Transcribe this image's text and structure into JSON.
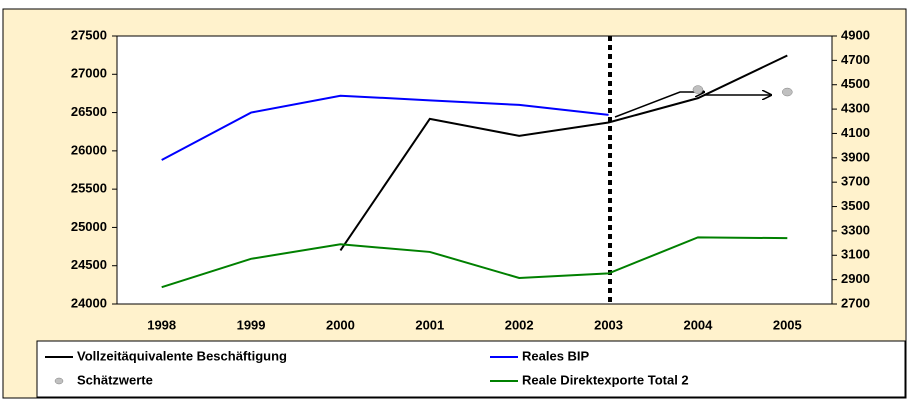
{
  "chart_data": {
    "type": "line",
    "categories": [
      "1998",
      "1999",
      "2000",
      "2001",
      "2002",
      "2003",
      "2004",
      "2005"
    ],
    "ylim": [
      24000,
      27500
    ],
    "yticks": [
      24000,
      24500,
      25000,
      25500,
      26000,
      26500,
      27000,
      27500
    ],
    "y2lim": [
      2700,
      4900
    ],
    "y2ticks": [
      2700,
      2900,
      3100,
      3300,
      3500,
      3700,
      3900,
      4100,
      4300,
      4500,
      4700,
      4900
    ],
    "grid": false,
    "series": [
      {
        "name": "Vollzeitäquivalente Beschäftigung",
        "color": "#000000",
        "axis": "y2",
        "values": [
          null,
          null,
          3140,
          4220,
          4080,
          4190,
          4390,
          4740
        ]
      },
      {
        "name": "Reales BIP",
        "color": "#0000ff",
        "values": [
          25880,
          26500,
          26720,
          26660,
          26600,
          26470,
          null,
          null
        ]
      },
      {
        "name": "Schätzwerte",
        "color": "#c0c0c0",
        "axis": "y2",
        "type": "scatter",
        "values": [
          null,
          null,
          null,
          null,
          null,
          null,
          4460,
          4440
        ]
      },
      {
        "name": "Reale Direktexporte Total 2",
        "color": "#008000",
        "values": [
          24220,
          24590,
          24780,
          24680,
          24340,
          24400,
          24870,
          24860
        ]
      }
    ]
  }
}
